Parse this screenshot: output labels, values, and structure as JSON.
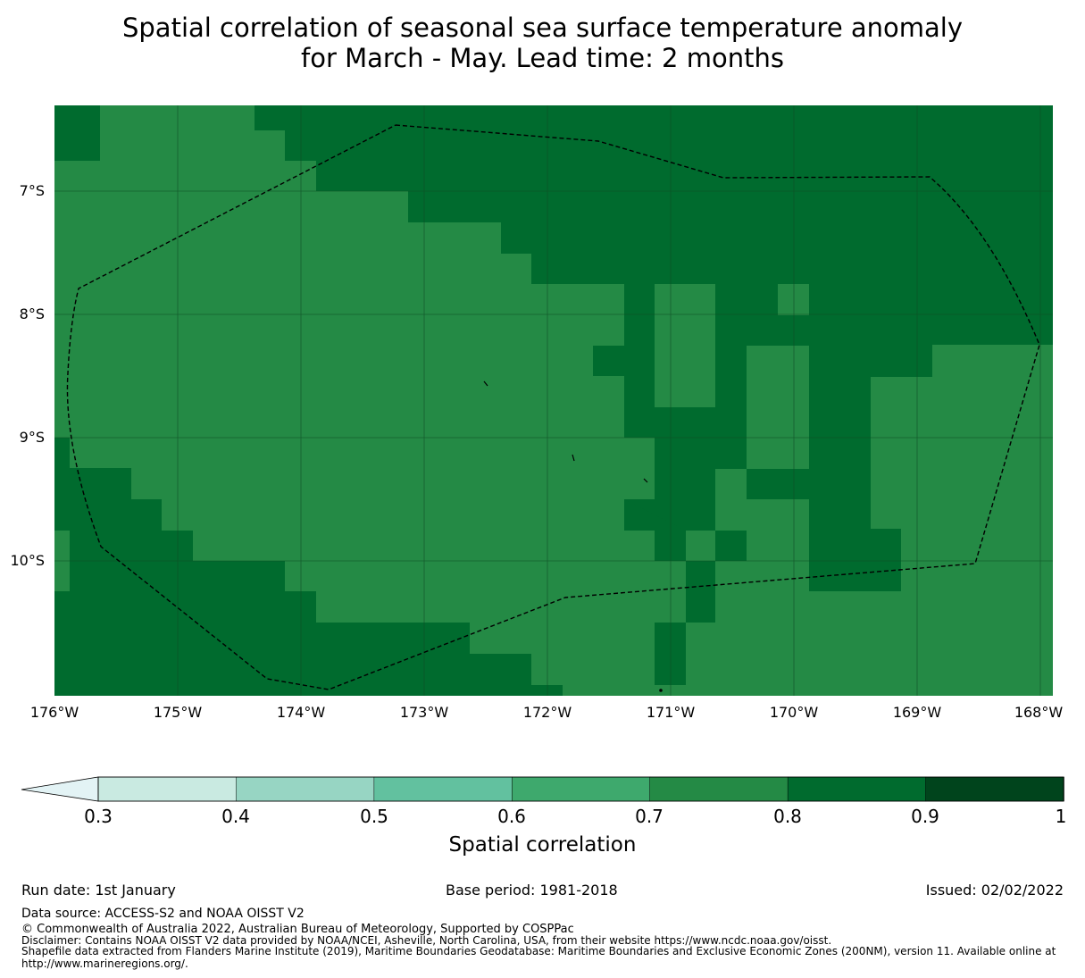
{
  "title": {
    "line1": "Spatial correlation of seasonal sea surface temperature anomaly",
    "line2": "for March - May. Lead time: 2 months"
  },
  "map": {
    "lat_labels": [
      "7°S",
      "8°S",
      "9°S",
      "10°S"
    ],
    "lon_labels": [
      "176°W",
      "175°W",
      "174°W",
      "173°W",
      "172°W",
      "171°W",
      "170°W",
      "169°W",
      "168°W"
    ],
    "colors": {
      "c07": "#248a45",
      "c08": "#006b2e"
    }
  },
  "colorbar": {
    "ticks": [
      "0.3",
      "0.4",
      "0.5",
      "0.6",
      "0.7",
      "0.8",
      "0.9",
      "1"
    ],
    "colors": [
      "#c9eae1",
      "#97d5c3",
      "#62c19f",
      "#3ea96d",
      "#248a45",
      "#006b2e",
      "#00441c"
    ],
    "extend_color": "#e3f3f5",
    "label": "Spatial correlation"
  },
  "footer": {
    "run_date": "Run date: 1st January",
    "base_period": "Base period: 1981-2018",
    "issued": "Issued: 02/02/2022",
    "data_source": "Data source: ACCESS-S2 and NOAA OISST V2",
    "copyright": "© Commonwealth of Australia 2022, Australian Bureau of Meteorology, Supported by COSPPac",
    "disclaimer": "Disclaimer: Contains NOAA OISST V2 data provided by NOAA/NCEI, Asheville, North Carolina, USA, from their website https://www.ncdc.noaa.gov/oisst.",
    "shapefile": "Shapefile data extracted from Flanders Marine Institute (2019), Maritime Boundaries Geodatabase: Maritime Boundaries and Exclusive Economic Zones (200NM), version 11. Available online at http://www.marineregions.org/."
  }
}
